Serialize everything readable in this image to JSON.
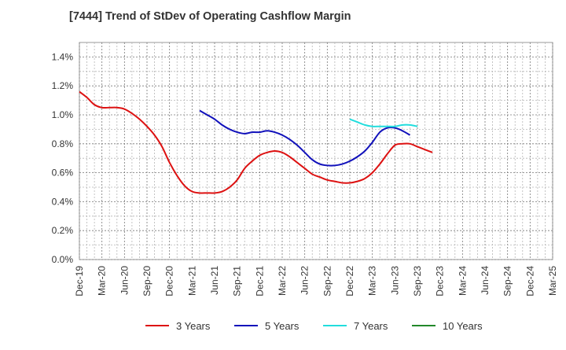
{
  "chart_data": {
    "type": "line",
    "title": "[7444]  Trend of StDev of Operating Cashflow Margin",
    "xlabel": "",
    "ylabel": "",
    "x_ticks": [
      "Dec-19",
      "Mar-20",
      "Jun-20",
      "Sep-20",
      "Dec-20",
      "Mar-21",
      "Jun-21",
      "Sep-21",
      "Dec-21",
      "Mar-22",
      "Jun-22",
      "Sep-22",
      "Dec-22",
      "Mar-23",
      "Jun-23",
      "Sep-23",
      "Dec-23",
      "Mar-24",
      "Jun-24",
      "Sep-24",
      "Dec-24",
      "Mar-25"
    ],
    "y_ticks": [
      "0.0%",
      "0.2%",
      "0.4%",
      "0.6%",
      "0.8%",
      "1.0%",
      "1.2%",
      "1.4%"
    ],
    "ylim": [
      0,
      1.5
    ],
    "grid": true,
    "legend_position": "bottom",
    "series": [
      {
        "name": "3 Years",
        "color": "#dd1111",
        "values": [
          1.16,
          1.12,
          1.07,
          1.05,
          1.05,
          1.05,
          1.04,
          1.01,
          0.97,
          0.92,
          0.86,
          0.78,
          0.67,
          0.58,
          0.51,
          0.47,
          0.46,
          0.46,
          0.46,
          0.47,
          0.5,
          0.55,
          0.63,
          0.68,
          0.72,
          0.74,
          0.75,
          0.74,
          0.71,
          0.67,
          0.63,
          0.59,
          0.57,
          0.55,
          0.54,
          0.53,
          0.53,
          0.54,
          0.56,
          0.6,
          0.66,
          0.73,
          0.79,
          0.8,
          0.8,
          0.78,
          0.76,
          0.74
        ]
      },
      {
        "name": "5 Years",
        "color": "#1111bb",
        "values": [
          null,
          null,
          null,
          null,
          null,
          null,
          null,
          null,
          null,
          null,
          null,
          null,
          null,
          null,
          null,
          null,
          1.03,
          1.0,
          0.97,
          0.93,
          0.9,
          0.88,
          0.87,
          0.88,
          0.88,
          0.89,
          0.88,
          0.86,
          0.83,
          0.79,
          0.74,
          0.69,
          0.66,
          0.65,
          0.65,
          0.66,
          0.68,
          0.71,
          0.75,
          0.81,
          0.88,
          0.91,
          0.91,
          0.89,
          0.86
        ]
      },
      {
        "name": "7 Years",
        "color": "#22dddd",
        "values": [
          null,
          null,
          null,
          null,
          null,
          null,
          null,
          null,
          null,
          null,
          null,
          null,
          null,
          null,
          null,
          null,
          null,
          null,
          null,
          null,
          null,
          null,
          null,
          null,
          null,
          null,
          null,
          null,
          null,
          null,
          null,
          null,
          null,
          null,
          null,
          null,
          0.97,
          0.95,
          0.93,
          0.92,
          0.92,
          0.92,
          0.92,
          0.93,
          0.93,
          0.92
        ]
      },
      {
        "name": "10 Years",
        "color": "#22882a",
        "values": []
      }
    ]
  }
}
